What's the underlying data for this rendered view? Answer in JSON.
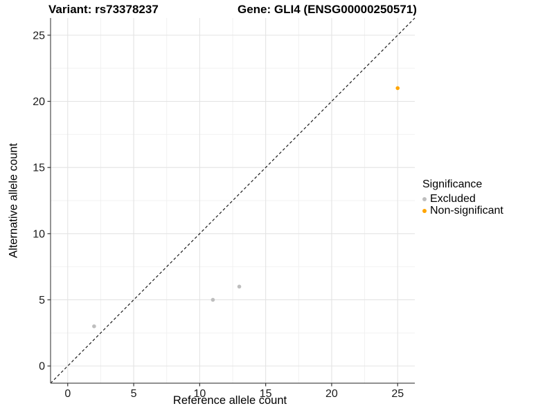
{
  "figure": {
    "title_left": "Variant: rs73378237",
    "title_right": "Gene: GLI4 (ENSG00000250571)"
  },
  "chart_data": {
    "type": "scatter",
    "title": "Variant: rs73378237   Gene: GLI4 (ENSG00000250571)",
    "xlabel": "Reference allele count",
    "ylabel": "Alternative allele count",
    "xlim": [
      -1.3,
      26.3
    ],
    "ylim": [
      -1.3,
      26.3
    ],
    "x_ticks": [
      0,
      5,
      10,
      15,
      20,
      25
    ],
    "y_ticks": [
      0,
      5,
      10,
      15,
      20,
      25
    ],
    "x_minor_ticks": [
      2.5,
      7.5,
      12.5,
      17.5,
      22.5
    ],
    "y_minor_ticks": [
      2.5,
      7.5,
      12.5,
      17.5,
      22.5
    ],
    "grid": true,
    "identity_line": {
      "slope": 1,
      "intercept": 0,
      "style": "dashed",
      "color": "#1a1a1a"
    },
    "series": [
      {
        "name": "Excluded",
        "color": "#BEBEBE",
        "points": [
          [
            2,
            3
          ],
          [
            11,
            5
          ],
          [
            13,
            6
          ]
        ]
      },
      {
        "name": "Non-significant",
        "color": "#FFA500",
        "points": [
          [
            25,
            21
          ]
        ]
      }
    ],
    "legend_position": "right"
  },
  "legend": {
    "title": "Significance",
    "items": [
      {
        "label": "Excluded",
        "color": "#BEBEBE"
      },
      {
        "label": "Non-significant",
        "color": "#FFA500"
      }
    ]
  },
  "style_colors": {
    "major_grid": "#E3E3E3",
    "minor_grid": "#F0F0F0",
    "axis_line": "#4d4d4d",
    "tick_mark": "#333333",
    "tick_label": "#1a1a1a"
  }
}
